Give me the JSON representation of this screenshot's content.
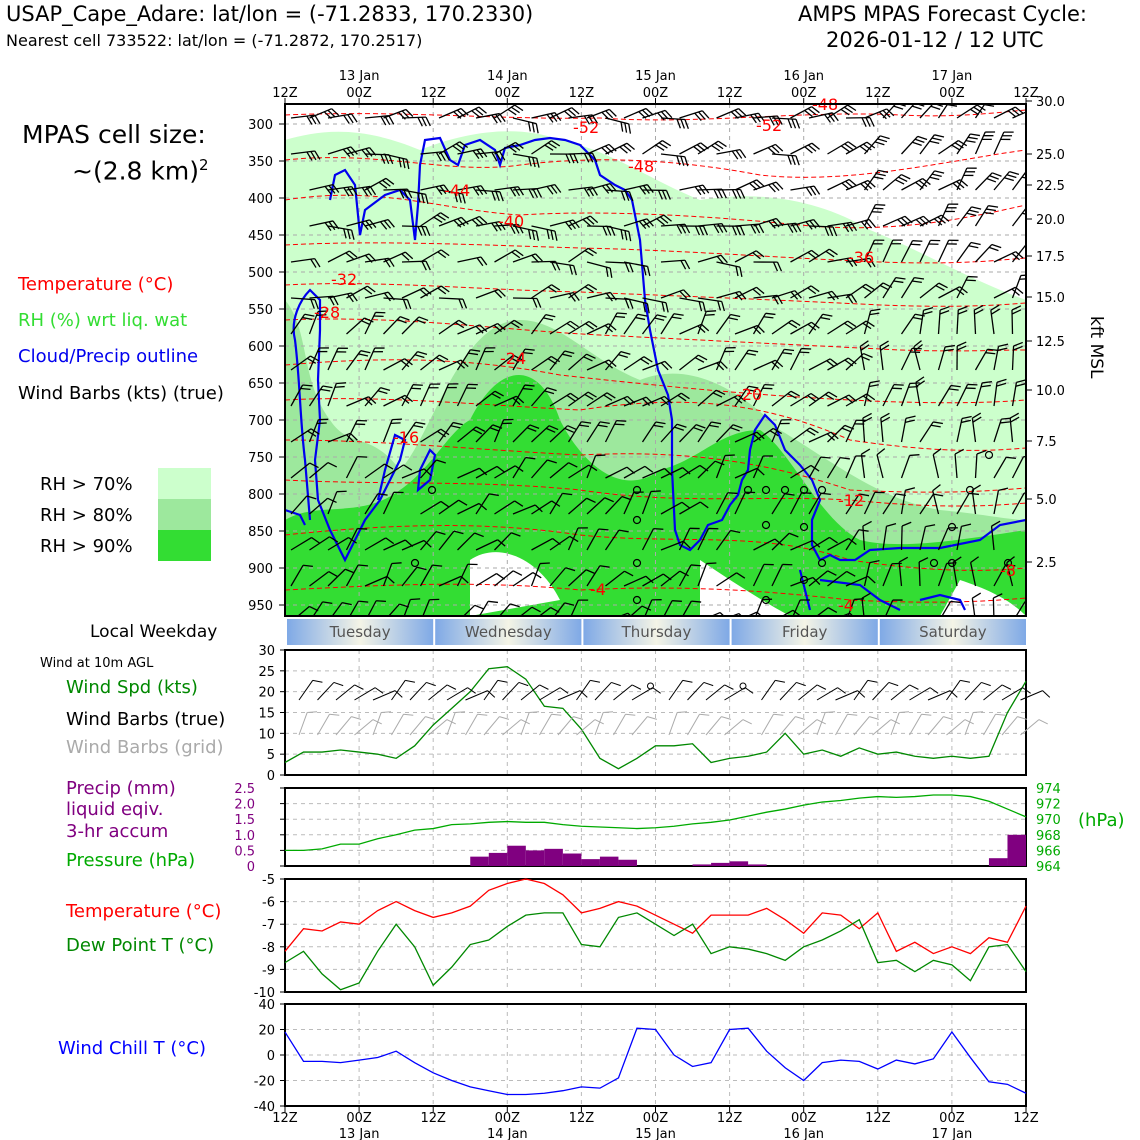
{
  "header": {
    "station": "USAP_Cape_Adare: lat/lon = (-71.2833, 170.2330)",
    "nearest": "Nearest cell 733522: lat/lon = (-71.2872, 170.2517)",
    "cycle_line1": "AMPS MPAS Forecast Cycle:",
    "cycle_line2": "2026-01-12 / 12 UTC"
  },
  "cell_size": {
    "line1": "MPAS cell size:",
    "line2": "~(2.8 km)",
    "exp": "2"
  },
  "legend_upper": {
    "temperature": "Temperature (°C)",
    "rh": "RH (%) wrt liq. wat",
    "cloud": "Cloud/Precip outline",
    "barbs": "Wind Barbs (kts) (true)",
    "rh70": "RH > 70%",
    "rh80": "RH > 80%",
    "rh90": "RH > 90%"
  },
  "colors": {
    "rh70": "#ccffcc",
    "rh80": "#9de89d",
    "rh90": "#33dd33",
    "temperature": "#ff0000",
    "cloud": "#0000ee",
    "rh_text": "#33dd33",
    "precip": "#800080",
    "pressure": "#00aa00",
    "dewpoint": "#008800",
    "windchill": "#0000ff",
    "grid_barbs": "#aaaaaa"
  },
  "time_axis": {
    "hours": [
      "12Z",
      "00Z",
      "12Z",
      "00Z",
      "12Z",
      "00Z",
      "12Z",
      "00Z",
      "12Z",
      "00Z",
      "12Z"
    ],
    "dates": [
      "",
      "13 Jan",
      "",
      "14 Jan",
      "",
      "15 Jan",
      "",
      "16 Jan",
      "",
      "17 Jan",
      ""
    ]
  },
  "weekday": {
    "label": "Local Weekday",
    "days": [
      "Tuesday",
      "Wednesday",
      "Thursday",
      "Friday",
      "Saturday"
    ]
  },
  "cross_section": {
    "pressure_ticks": [
      "300",
      "350",
      "400",
      "450",
      "500",
      "550",
      "600",
      "650",
      "700",
      "750",
      "800",
      "850",
      "900",
      "950"
    ],
    "kft_ticks": [
      "30.0",
      "25.0",
      "22.5",
      "20.0",
      "17.5",
      "15.0",
      "12.5",
      "10.0",
      "7.5",
      "5.0",
      "2.5"
    ],
    "kft_values": [
      30.0,
      25.0,
      22.5,
      20.0,
      17.5,
      15.0,
      12.5,
      10.0,
      7.5,
      5.0,
      2.5
    ],
    "right_label": "kft MSL",
    "temp_labels": [
      "-52",
      "-52",
      "-48",
      "-48",
      "-44",
      "-40",
      "-36",
      "-32",
      "-28",
      "-24",
      "-20",
      "-16",
      "-12",
      "-8",
      "-4",
      "-4"
    ]
  },
  "wind_panel": {
    "title": "Wind at 10m AGL",
    "speed_label": "Wind Spd (kts)",
    "barbs_true": "Wind Barbs (true)",
    "barbs_grid": "Wind Barbs (grid)",
    "yticks": [
      "0",
      "5",
      "10",
      "15",
      "20",
      "25",
      "30"
    ]
  },
  "precip_panel": {
    "label1": "Precip (mm)",
    "label2": "liquid eqiv.",
    "label3": "3-hr accum",
    "pressure_label": "Pressure (hPa)",
    "hpa_unit": "(hPa)",
    "left_ticks": [
      "0",
      "0.5",
      "1.0",
      "1.5",
      "2.0",
      "2.5"
    ],
    "right_ticks": [
      "964",
      "966",
      "968",
      "970",
      "972",
      "974"
    ]
  },
  "temp_panel": {
    "temp_label": "Temperature (°C)",
    "dew_label": "Dew Point T (°C)",
    "yticks": [
      "-10",
      "-9",
      "-8",
      "-7",
      "-6",
      "-5"
    ]
  },
  "chill_panel": {
    "label": "Wind Chill T (°C)",
    "yticks": [
      "-40",
      "-20",
      "0",
      "20",
      "40"
    ]
  },
  "chart_data": [
    {
      "type": "line",
      "panel": "wind_10m",
      "x_hours": [
        0,
        3,
        6,
        9,
        12,
        15,
        18,
        21,
        24,
        27,
        30,
        33,
        36,
        39,
        42,
        45,
        48,
        51,
        54,
        57,
        60,
        63,
        66,
        69,
        72,
        75,
        78,
        81,
        84,
        87,
        90,
        93,
        96,
        99,
        102,
        105,
        108,
        111,
        114,
        117,
        120
      ],
      "series": [
        {
          "name": "Wind Spd (kts)",
          "values": [
            3,
            5.5,
            5.5,
            6,
            5.5,
            5,
            4,
            7,
            12,
            16,
            20,
            25.5,
            26,
            23,
            16.5,
            16,
            11,
            4,
            1.5,
            4,
            7,
            7,
            7.5,
            3,
            4,
            4.5,
            5.5,
            10,
            5,
            6,
            4.5,
            6.5,
            5,
            5.5,
            4.5,
            4,
            4.5,
            4,
            4.5,
            15,
            22.5
          ]
        }
      ],
      "ylim": [
        0,
        30
      ]
    },
    {
      "type": "bar",
      "panel": "precip",
      "x_hours": [
        33,
        36,
        39,
        42,
        45,
        48,
        51,
        54,
        57,
        69,
        72,
        75,
        78,
        117,
        120
      ],
      "values": [
        0.3,
        0.42,
        0.65,
        0.5,
        0.55,
        0.4,
        0.22,
        0.3,
        0.2,
        0.05,
        0.1,
        0.15,
        0.05,
        0.25,
        1.0
      ],
      "ylim": [
        0,
        2.5
      ]
    },
    {
      "type": "line",
      "panel": "pressure",
      "x_hours": [
        0,
        3,
        6,
        9,
        12,
        15,
        18,
        21,
        24,
        27,
        30,
        33,
        36,
        39,
        42,
        45,
        48,
        51,
        54,
        57,
        60,
        63,
        66,
        69,
        72,
        75,
        78,
        81,
        84,
        87,
        90,
        93,
        96,
        99,
        102,
        105,
        108,
        111,
        114,
        117,
        120
      ],
      "series": [
        {
          "name": "Pressure (hPa)",
          "values": [
            966,
            966,
            966.2,
            966.8,
            966.8,
            967.5,
            968,
            968.6,
            968.8,
            969.3,
            969.4,
            969.6,
            969.7,
            969.6,
            969.6,
            969.3,
            969.1,
            969.0,
            968.9,
            968.8,
            968.9,
            969.1,
            969.4,
            969.6,
            969.9,
            970.4,
            970.9,
            971.3,
            971.8,
            972.2,
            972.4,
            972.7,
            972.9,
            972.8,
            972.9,
            973.1,
            973.1,
            972.9,
            972.3,
            971.3,
            970.3
          ]
        }
      ],
      "ylim": [
        964,
        974
      ]
    },
    {
      "type": "line",
      "panel": "temperature",
      "x_hours": [
        0,
        3,
        6,
        9,
        12,
        15,
        18,
        21,
        24,
        27,
        30,
        33,
        36,
        39,
        42,
        45,
        48,
        51,
        54,
        57,
        60,
        63,
        66,
        69,
        72,
        75,
        78,
        81,
        84,
        87,
        90,
        93,
        96,
        99,
        102,
        105,
        108,
        111,
        114,
        117,
        120
      ],
      "series": [
        {
          "name": "Temperature (°C)",
          "values": [
            -8.2,
            -7.2,
            -7.3,
            -6.9,
            -7.0,
            -6.4,
            -6.0,
            -6.4,
            -6.7,
            -6.5,
            -6.2,
            -5.5,
            -5.2,
            -5.0,
            -5.2,
            -5.7,
            -6.5,
            -6.3,
            -6.0,
            -6.2,
            -6.6,
            -7.0,
            -7.4,
            -6.6,
            -6.6,
            -6.6,
            -6.3,
            -6.8,
            -7.4,
            -6.5,
            -6.6,
            -7.2,
            -6.5,
            -8.2,
            -7.8,
            -8.3,
            -8.0,
            -8.3,
            -7.6,
            -7.8,
            -6.2
          ]
        },
        {
          "name": "Dew Point T (°C)",
          "values": [
            -8.7,
            -8.2,
            -9.2,
            -9.9,
            -9.6,
            -8.2,
            -7.0,
            -8.0,
            -9.7,
            -8.9,
            -7.9,
            -7.7,
            -7.1,
            -6.6,
            -6.5,
            -6.5,
            -7.9,
            -8.0,
            -6.7,
            -6.5,
            -7.0,
            -7.5,
            -7.0,
            -8.3,
            -8.0,
            -8.1,
            -8.3,
            -8.6,
            -8.0,
            -7.7,
            -7.3,
            -6.8,
            -8.7,
            -8.6,
            -9.1,
            -8.6,
            -8.8,
            -9.5,
            -8.0,
            -7.9,
            -9.1
          ]
        }
      ],
      "ylim": [
        -10,
        -5
      ]
    },
    {
      "type": "line",
      "panel": "wind_chill",
      "x_hours": [
        0,
        3,
        6,
        9,
        12,
        15,
        18,
        21,
        24,
        27,
        30,
        33,
        36,
        39,
        42,
        45,
        48,
        51,
        54,
        57,
        60,
        63,
        66,
        69,
        72,
        75,
        78,
        81,
        84,
        87,
        90,
        93,
        96,
        99,
        102,
        105,
        108,
        111,
        114,
        117,
        120
      ],
      "series": [
        {
          "name": "Wind Chill T (°C)",
          "values": [
            18,
            -5,
            -5,
            -6,
            -4,
            -2,
            3,
            -6,
            -14,
            -20,
            -25,
            -28,
            -31,
            -31,
            -30,
            -28,
            -25,
            -26,
            -18,
            21,
            20,
            0,
            -9,
            -6,
            20,
            21,
            3,
            -10,
            -20,
            -6,
            -4,
            -5,
            -11,
            -4,
            -7,
            -3,
            18,
            -2,
            -21,
            -23,
            -30
          ]
        }
      ],
      "ylim": [
        -40,
        40
      ]
    }
  ]
}
